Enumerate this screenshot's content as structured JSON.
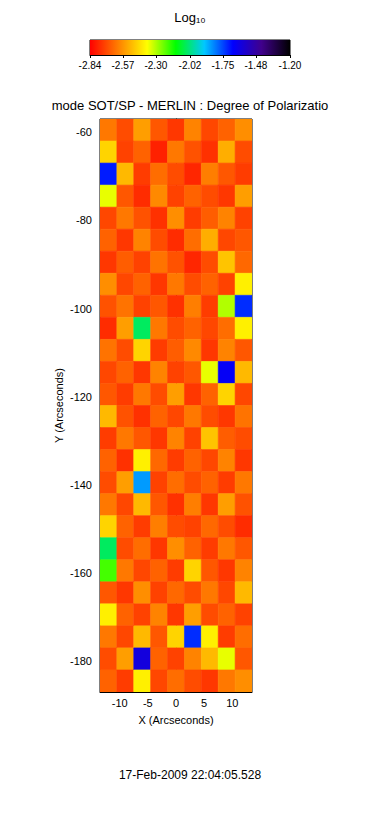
{
  "chart_data": {
    "type": "heatmap",
    "title": "mode SOT/SP - MERLIN : Degree of Polarizatio",
    "subtitle": "17-Feb-2009 22:04:05.528",
    "x_label": "X (Arcseconds)",
    "y_label": "Y (Arcseconds)",
    "xlim": [
      -13.5,
      13.5
    ],
    "xticks": [
      -10,
      -5,
      0,
      5,
      10
    ],
    "ylim": [
      -187,
      -57
    ],
    "yticks": [
      -180,
      -160,
      -140,
      -120,
      -100,
      -80,
      -60
    ],
    "cells": {
      "x": [
        -12,
        -9,
        -6,
        -3,
        0,
        3,
        6,
        9,
        12
      ],
      "y": [
        -59.5,
        -64.5,
        -69.5,
        -74.5,
        -79.5,
        -84.5,
        -89.5,
        -94.5,
        -99.5,
        -104.5,
        -109.5,
        -114.5,
        -119.5,
        -124.5,
        -129.5,
        -134.5,
        -139.5,
        -144.5,
        -149.5,
        -154.5,
        -159.5,
        -164.5,
        -169.5,
        -174.5,
        -179.5,
        -184.5
      ],
      "values": [
        [
          -2.62,
          -2.7,
          -2.55,
          -2.68,
          -2.74,
          -2.6,
          -2.71,
          -2.66,
          -2.58
        ],
        [
          -2.45,
          -2.72,
          -2.66,
          -2.78,
          -2.62,
          -2.69,
          -2.75,
          -2.52,
          -2.7
        ],
        [
          -1.7,
          -2.5,
          -2.73,
          -2.64,
          -2.7,
          -2.77,
          -2.61,
          -2.68,
          -2.73
        ],
        [
          -2.35,
          -2.68,
          -2.76,
          -2.59,
          -2.72,
          -2.66,
          -2.7,
          -2.74,
          -2.55
        ],
        [
          -2.71,
          -2.62,
          -2.69,
          -2.75,
          -2.58,
          -2.73,
          -2.67,
          -2.6,
          -2.72
        ],
        [
          -2.66,
          -2.74,
          -2.6,
          -2.7,
          -2.76,
          -2.64,
          -2.52,
          -2.71,
          -2.68
        ],
        [
          -2.74,
          -2.67,
          -2.72,
          -2.63,
          -2.69,
          -2.77,
          -2.7,
          -2.48,
          -2.65
        ],
        [
          -2.58,
          -2.71,
          -2.66,
          -2.74,
          -2.62,
          -2.7,
          -2.66,
          -2.72,
          -2.4
        ],
        [
          -2.69,
          -2.63,
          -2.72,
          -2.68,
          -2.75,
          -2.61,
          -2.73,
          -2.3,
          -1.72
        ],
        [
          -2.76,
          -2.55,
          -2.05,
          -2.62,
          -2.7,
          -2.66,
          -2.71,
          -2.64,
          -2.4
        ],
        [
          -2.63,
          -2.7,
          -2.45,
          -2.73,
          -2.67,
          -2.59,
          -2.74,
          -2.6,
          -2.68
        ],
        [
          -2.71,
          -2.66,
          -2.74,
          -2.6,
          -2.72,
          -2.68,
          -2.35,
          -1.65,
          -2.5
        ],
        [
          -2.68,
          -2.73,
          -2.62,
          -2.7,
          -2.55,
          -2.74,
          -2.66,
          -2.45,
          -2.71
        ],
        [
          -2.5,
          -2.69,
          -2.75,
          -2.66,
          -2.71,
          -2.62,
          -2.7,
          -2.74,
          -2.63
        ],
        [
          -2.73,
          -2.62,
          -2.68,
          -2.74,
          -2.6,
          -2.72,
          -2.48,
          -2.67,
          -2.7
        ],
        [
          -2.66,
          -2.75,
          -2.4,
          -2.65,
          -2.73,
          -2.66,
          -2.71,
          -2.6,
          -2.74
        ],
        [
          -2.7,
          -2.55,
          -1.85,
          -2.72,
          -2.64,
          -2.7,
          -2.66,
          -2.73,
          -2.62
        ],
        [
          -2.62,
          -2.71,
          -2.5,
          -2.68,
          -2.75,
          -2.61,
          -2.74,
          -2.55,
          -2.69
        ],
        [
          -2.45,
          -2.66,
          -2.73,
          -2.61,
          -2.7,
          -2.72,
          -2.65,
          -2.7,
          -2.76
        ],
        [
          -2.05,
          -2.7,
          -2.64,
          -2.74,
          -2.58,
          -2.66,
          -2.73,
          -2.62,
          -2.68
        ],
        [
          -2.2,
          -2.62,
          -2.71,
          -2.66,
          -2.73,
          -2.45,
          -2.68,
          -2.74,
          -2.6
        ],
        [
          -2.68,
          -2.74,
          -2.58,
          -2.72,
          -2.65,
          -2.7,
          -2.62,
          -2.71,
          -2.5
        ],
        [
          -2.4,
          -2.66,
          -2.72,
          -2.6,
          -2.74,
          -2.55,
          -2.7,
          -2.66,
          -2.72
        ],
        [
          -2.62,
          -2.71,
          -2.5,
          -2.68,
          -2.45,
          -1.72,
          -2.4,
          -2.73,
          -2.64
        ],
        [
          -2.7,
          -2.55,
          -1.6,
          -2.66,
          -2.72,
          -2.6,
          -2.5,
          -2.35,
          -2.68
        ],
        [
          -2.66,
          -2.73,
          -2.4,
          -2.71,
          -2.64,
          -2.7,
          -2.74,
          -2.62,
          -2.58
        ]
      ]
    },
    "colorbar": {
      "title": "Log₁₀",
      "range": [
        -2.84,
        -1.2
      ],
      "ticks": [
        -2.84,
        -2.57,
        {
          "value": -2.3,
          "label": "-2.30"
        },
        -2.02,
        -1.75,
        -1.48,
        {
          "value": -1.2,
          "label": "-1.20"
        }
      ],
      "colors": [
        "#ff0000",
        "#ff8000",
        "#ffff00",
        "#00ff00",
        "#00c8ff",
        "#0000ff",
        "#40008c",
        "#000000"
      ]
    }
  }
}
